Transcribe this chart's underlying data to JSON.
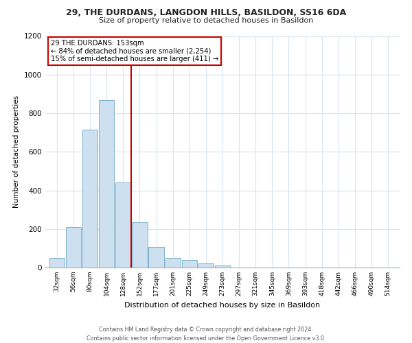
{
  "title": "29, THE DURDANS, LANGDON HILLS, BASILDON, SS16 6DA",
  "subtitle": "Size of property relative to detached houses in Basildon",
  "xlabel": "Distribution of detached houses by size in Basildon",
  "ylabel": "Number of detached properties",
  "bin_labels": [
    "32sqm",
    "56sqm",
    "80sqm",
    "104sqm",
    "128sqm",
    "152sqm",
    "177sqm",
    "201sqm",
    "225sqm",
    "249sqm",
    "273sqm",
    "297sqm",
    "321sqm",
    "345sqm",
    "369sqm",
    "393sqm",
    "418sqm",
    "442sqm",
    "466sqm",
    "490sqm",
    "514sqm"
  ],
  "bar_values": [
    50,
    210,
    715,
    868,
    440,
    235,
    105,
    50,
    38,
    20,
    12,
    0,
    0,
    0,
    0,
    0,
    0,
    0,
    0,
    0,
    0
  ],
  "bar_color": "#cce0f0",
  "bar_edge_color": "#7ab0cc",
  "vline_bin_index": 5,
  "vline_color": "#cc0000",
  "annotation_title": "29 THE DURDANS: 153sqm",
  "annotation_line1": "← 84% of detached houses are smaller (2,254)",
  "annotation_line2": "15% of semi-detached houses are larger (411) →",
  "annotation_box_color": "#ffffff",
  "annotation_box_edge": "#cc0000",
  "ylim": [
    0,
    1200
  ],
  "yticks": [
    0,
    200,
    400,
    600,
    800,
    1000,
    1200
  ],
  "footer_line1": "Contains HM Land Registry data © Crown copyright and database right 2024.",
  "footer_line2": "Contains public sector information licensed under the Open Government Licence v3.0.",
  "bg_color": "#ffffff",
  "grid_color": "#d8e4ee"
}
